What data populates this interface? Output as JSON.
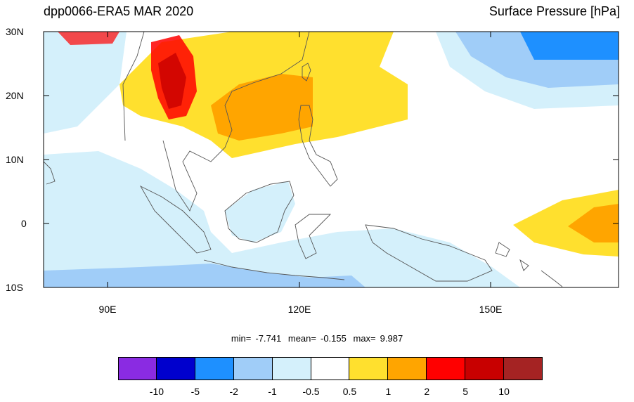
{
  "header": {
    "left_title": "dpp0066-ERA5 MAR 2020",
    "right_title": "Surface Pressure [hPa]"
  },
  "map": {
    "lon_range": [
      80,
      170
    ],
    "lat_range": [
      -10,
      30
    ],
    "lat_ticks": [
      {
        "value": 30,
        "label": "30N"
      },
      {
        "value": 20,
        "label": "20N"
      },
      {
        "value": 10,
        "label": "10N"
      },
      {
        "value": 0,
        "label": "0"
      },
      {
        "value": -10,
        "label": "10S"
      }
    ],
    "lon_ticks": [
      {
        "value": 90,
        "label": "90E"
      },
      {
        "value": 120,
        "label": "120E"
      },
      {
        "value": 150,
        "label": "150E"
      }
    ]
  },
  "stats": {
    "min_label": "min=",
    "min_value": "-7.741",
    "mean_label": "mean=",
    "mean_value": "-0.155",
    "max_label": "max=",
    "max_value": "9.987"
  },
  "colorbar": {
    "colors": [
      "#8a2be2",
      "#0000cd",
      "#1e90ff",
      "#a0cdf8",
      "#d4f0fb",
      "#ffffff",
      "#ffe02e",
      "#ffa500",
      "#ff0000",
      "#c80000",
      "#a52323"
    ],
    "labels": [
      "-10",
      "-5",
      "-2",
      "-1",
      "-0.5",
      "0.5",
      "1",
      "2",
      "5",
      "10"
    ]
  }
}
